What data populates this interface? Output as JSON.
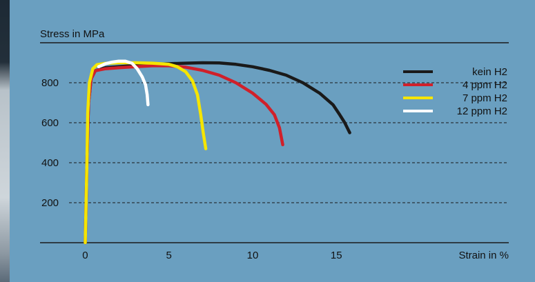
{
  "chart_data": {
    "type": "line",
    "title": "",
    "ylabel": "Stress in MPa",
    "xlabel": "Strain in %",
    "xlim": [
      -2.7,
      25.3
    ],
    "ylim": [
      0,
      1000
    ],
    "xticks": [
      "0",
      "5",
      "10",
      "15"
    ],
    "yticks": [
      "200",
      "400",
      "600",
      "800"
    ],
    "grid": "dashed horizontal",
    "legend_position": "top-right",
    "series": [
      {
        "name": "kein H2",
        "color": "#1a1a1a",
        "points": [
          [
            0,
            0
          ],
          [
            0.1,
            400
          ],
          [
            0.2,
            700
          ],
          [
            0.35,
            820
          ],
          [
            0.6,
            860
          ],
          [
            1.2,
            875
          ],
          [
            2,
            880
          ],
          [
            3,
            887
          ],
          [
            4,
            892
          ],
          [
            5,
            895
          ],
          [
            6,
            898
          ],
          [
            7,
            900
          ],
          [
            8,
            899
          ],
          [
            9,
            892
          ],
          [
            10,
            880
          ],
          [
            11,
            862
          ],
          [
            12,
            838
          ],
          [
            13,
            800
          ],
          [
            14,
            748
          ],
          [
            14.8,
            690
          ],
          [
            15.2,
            640
          ],
          [
            15.5,
            600
          ],
          [
            15.8,
            550
          ]
        ]
      },
      {
        "name": "4 ppm H2",
        "color": "#d0202a",
        "points": [
          [
            0,
            0
          ],
          [
            0.1,
            400
          ],
          [
            0.2,
            700
          ],
          [
            0.35,
            820
          ],
          [
            0.6,
            860
          ],
          [
            1.2,
            870
          ],
          [
            2,
            875
          ],
          [
            3,
            880
          ],
          [
            4,
            885
          ],
          [
            5,
            885
          ],
          [
            6,
            878
          ],
          [
            7,
            862
          ],
          [
            8,
            838
          ],
          [
            9,
            800
          ],
          [
            10,
            748
          ],
          [
            10.8,
            692
          ],
          [
            11.3,
            640
          ],
          [
            11.6,
            575
          ],
          [
            11.8,
            490
          ]
        ]
      },
      {
        "name": "7 ppm H2",
        "color": "#f5e500",
        "points": [
          [
            0,
            0
          ],
          [
            0.1,
            400
          ],
          [
            0.15,
            650
          ],
          [
            0.25,
            800
          ],
          [
            0.45,
            870
          ],
          [
            0.7,
            890
          ],
          [
            1.2,
            897
          ],
          [
            2,
            900
          ],
          [
            3,
            900
          ],
          [
            4,
            898
          ],
          [
            5,
            892
          ],
          [
            5.5,
            880
          ],
          [
            6,
            855
          ],
          [
            6.4,
            810
          ],
          [
            6.7,
            740
          ],
          [
            6.9,
            640
          ],
          [
            7.05,
            550
          ],
          [
            7.2,
            470
          ]
        ]
      },
      {
        "name": "12 ppm H2",
        "color": "#ffffff",
        "points": [
          [
            0.8,
            880
          ],
          [
            1.2,
            895
          ],
          [
            1.6,
            903
          ],
          [
            2,
            908
          ],
          [
            2.4,
            908
          ],
          [
            2.8,
            897
          ],
          [
            3.1,
            870
          ],
          [
            3.4,
            830
          ],
          [
            3.6,
            790
          ],
          [
            3.7,
            740
          ],
          [
            3.75,
            690
          ]
        ]
      }
    ]
  }
}
